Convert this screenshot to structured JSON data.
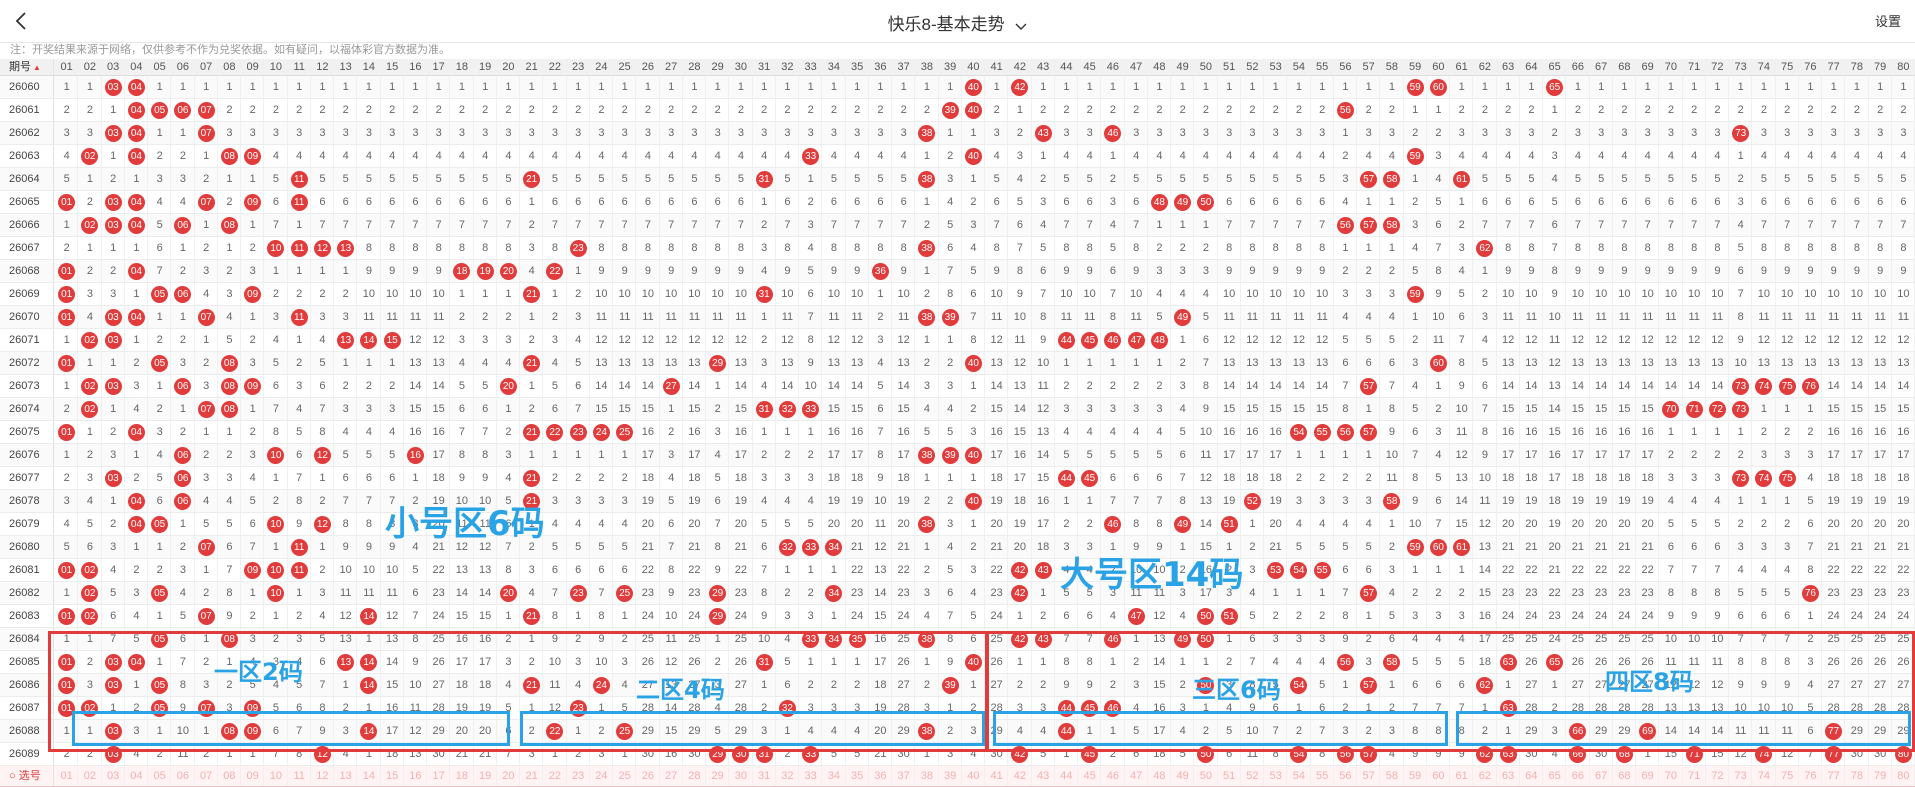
{
  "header": {
    "title": "快乐8-基本走势",
    "settings_label": "设置"
  },
  "notice": "注：开奖结果来源于网络，仅供参考不作为兑奖依据。如有疑问，以福体彩官方数据为准。",
  "table": {
    "period_header": "期号",
    "numbers": [
      "01",
      "02",
      "03",
      "04",
      "05",
      "06",
      "07",
      "08",
      "09",
      "10",
      "11",
      "12",
      "13",
      "14",
      "15",
      "16",
      "17",
      "18",
      "19",
      "20",
      "21",
      "22",
      "23",
      "24",
      "25",
      "26",
      "27",
      "28",
      "29",
      "30",
      "31",
      "32",
      "33",
      "34",
      "35",
      "36",
      "37",
      "38",
      "39",
      "40",
      "41",
      "42",
      "43",
      "44",
      "45",
      "46",
      "47",
      "48",
      "49",
      "50",
      "51",
      "52",
      "53",
      "54",
      "55",
      "56",
      "57",
      "58",
      "59",
      "60",
      "61",
      "62",
      "63",
      "64",
      "65",
      "66",
      "67",
      "68",
      "69",
      "70",
      "71",
      "72",
      "73",
      "74",
      "75",
      "76",
      "77",
      "78",
      "79",
      "80"
    ],
    "rows": [
      {
        "period": "26060",
        "draws": [
          3,
          4,
          40,
          42,
          59,
          60,
          65
        ]
      },
      {
        "period": "26061",
        "draws": [
          4,
          5,
          6,
          7,
          39,
          40,
          56
        ]
      },
      {
        "period": "26062",
        "draws": [
          3,
          4,
          7,
          38,
          43,
          46,
          73
        ]
      },
      {
        "period": "26063",
        "draws": [
          2,
          4,
          8,
          9,
          33,
          40,
          59
        ]
      },
      {
        "period": "26064",
        "draws": [
          11,
          21,
          31,
          38,
          57,
          58,
          61
        ]
      },
      {
        "period": "26065",
        "draws": [
          1,
          3,
          4,
          7,
          9,
          11,
          48,
          49,
          50
        ]
      },
      {
        "period": "26066",
        "draws": [
          2,
          3,
          4,
          6,
          8,
          56,
          57,
          58
        ]
      },
      {
        "period": "26067",
        "draws": [
          10,
          11,
          12,
          13,
          23,
          38,
          62
        ]
      },
      {
        "period": "26068",
        "draws": [
          1,
          4,
          18,
          19,
          20,
          22,
          36
        ]
      },
      {
        "period": "26069",
        "draws": [
          1,
          5,
          6,
          9,
          21,
          31,
          59
        ]
      },
      {
        "period": "26070",
        "draws": [
          1,
          3,
          4,
          7,
          11,
          38,
          39,
          49
        ]
      },
      {
        "period": "26071",
        "draws": [
          2,
          3,
          13,
          14,
          15,
          44,
          45,
          46,
          47,
          48
        ]
      },
      {
        "period": "26072",
        "draws": [
          1,
          5,
          8,
          21,
          29,
          40,
          60
        ]
      },
      {
        "period": "26073",
        "draws": [
          2,
          3,
          6,
          8,
          9,
          20,
          27,
          57,
          73,
          74,
          75,
          76
        ]
      },
      {
        "period": "26074",
        "draws": [
          2,
          7,
          8,
          31,
          32,
          33,
          70,
          71,
          72,
          73
        ]
      },
      {
        "period": "26075",
        "draws": [
          1,
          4,
          21,
          22,
          23,
          24,
          25,
          54,
          55,
          56,
          57
        ]
      },
      {
        "period": "26076",
        "draws": [
          6,
          10,
          12,
          16,
          38,
          39,
          40
        ]
      },
      {
        "period": "26077",
        "draws": [
          3,
          6,
          21,
          44,
          45,
          73,
          74,
          75
        ]
      },
      {
        "period": "26078",
        "draws": [
          4,
          6,
          21,
          40,
          52,
          58
        ]
      },
      {
        "period": "26079",
        "draws": [
          4,
          5,
          10,
          12,
          38,
          46,
          49,
          51
        ]
      },
      {
        "period": "26080",
        "draws": [
          7,
          11,
          32,
          33,
          34,
          59,
          60,
          61
        ]
      },
      {
        "period": "26081",
        "draws": [
          1,
          2,
          9,
          10,
          11,
          42,
          43,
          53,
          54,
          55
        ]
      },
      {
        "period": "26082",
        "draws": [
          2,
          5,
          10,
          20,
          23,
          25,
          29,
          34,
          42,
          57,
          76
        ]
      },
      {
        "period": "26083",
        "draws": [
          1,
          2,
          7,
          14,
          21,
          29,
          47,
          50,
          51
        ]
      },
      {
        "period": "26084",
        "draws": [
          5,
          8,
          33,
          34,
          35,
          38,
          42,
          43,
          46,
          49,
          50
        ]
      },
      {
        "period": "26085",
        "draws": [
          1,
          3,
          4,
          13,
          14,
          31,
          40,
          56,
          58,
          63,
          65
        ]
      },
      {
        "period": "26086",
        "draws": [
          1,
          3,
          5,
          14,
          21,
          24,
          39,
          50,
          54,
          57,
          62
        ]
      },
      {
        "period": "26087",
        "draws": [
          1,
          2,
          5,
          7,
          9,
          23,
          32,
          44,
          45,
          46,
          63
        ]
      },
      {
        "period": "26088",
        "draws": [
          3,
          8,
          9,
          14,
          22,
          25,
          38,
          44,
          66,
          69,
          77
        ]
      },
      {
        "period": "26089",
        "draws": [
          3,
          12,
          29,
          30,
          31,
          33,
          42,
          45,
          50,
          54,
          56,
          57,
          62,
          63,
          66,
          68,
          71,
          74,
          77,
          80
        ]
      }
    ],
    "select_label": "选号"
  },
  "annotations": {
    "small_zone": "小号区6码",
    "big_zone": "大号区14码",
    "zone1": "一区2码",
    "zone2": "二区4码",
    "zone3": "三区6码",
    "zone4": "四区8码"
  },
  "colors": {
    "ball": "#e23b3b",
    "ball_hit": "#9a1c1c",
    "box_red": "#e23b3b",
    "box_blue": "#2aa3e6"
  }
}
